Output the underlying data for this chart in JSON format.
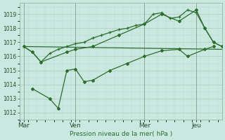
{
  "background_color": "#c8e8e0",
  "grid_color_major": "#b0c8c0",
  "grid_color_minor": "#c0d8d0",
  "line_color": "#2d6e2d",
  "xlabel": "Pression niveau de la mer( hPa )",
  "ylim": [
    1011.8,
    1019.8
  ],
  "yticks": [
    1012,
    1013,
    1014,
    1015,
    1016,
    1017,
    1018,
    1019
  ],
  "xtick_labels": [
    "Mar",
    "Ven",
    "Mer",
    "Jeu"
  ],
  "xtick_positions": [
    0,
    36,
    84,
    120
  ],
  "xlim": [
    -3,
    138
  ],
  "line1_plus": [
    [
      0,
      1016.7
    ],
    [
      6,
      1016.3
    ],
    [
      12,
      1015.6
    ],
    [
      18,
      1016.2
    ],
    [
      24,
      1016.5
    ],
    [
      30,
      1016.7
    ],
    [
      36,
      1016.9
    ],
    [
      42,
      1017.0
    ],
    [
      48,
      1017.3
    ],
    [
      54,
      1017.5
    ],
    [
      60,
      1017.7
    ],
    [
      66,
      1017.9
    ],
    [
      72,
      1018.0
    ],
    [
      78,
      1018.2
    ],
    [
      84,
      1018.3
    ],
    [
      90,
      1019.0
    ],
    [
      96,
      1019.1
    ],
    [
      102,
      1018.7
    ],
    [
      108,
      1018.8
    ],
    [
      114,
      1019.3
    ],
    [
      120,
      1019.1
    ],
    [
      126,
      1018.0
    ],
    [
      132,
      1017.0
    ],
    [
      138,
      1016.7
    ]
  ],
  "line2_diamond": [
    [
      0,
      1016.7
    ],
    [
      6,
      1016.3
    ],
    [
      12,
      1015.6
    ],
    [
      30,
      1016.3
    ],
    [
      36,
      1016.5
    ],
    [
      48,
      1016.7
    ],
    [
      66,
      1017.5
    ],
    [
      84,
      1018.3
    ],
    [
      96,
      1019.0
    ],
    [
      108,
      1018.5
    ],
    [
      120,
      1019.3
    ],
    [
      126,
      1018.0
    ],
    [
      132,
      1017.0
    ],
    [
      138,
      1016.7
    ]
  ],
  "line3_flat": [
    [
      0,
      1016.7
    ],
    [
      138,
      1016.5
    ]
  ],
  "line4_lower": [
    [
      6,
      1013.7
    ],
    [
      18,
      1013.0
    ],
    [
      24,
      1012.3
    ],
    [
      30,
      1015.0
    ],
    [
      36,
      1015.1
    ],
    [
      42,
      1014.2
    ],
    [
      48,
      1014.3
    ],
    [
      60,
      1015.0
    ],
    [
      72,
      1015.5
    ],
    [
      84,
      1016.0
    ],
    [
      96,
      1016.4
    ],
    [
      108,
      1016.5
    ],
    [
      114,
      1016.0
    ],
    [
      126,
      1016.5
    ],
    [
      132,
      1016.7
    ]
  ]
}
